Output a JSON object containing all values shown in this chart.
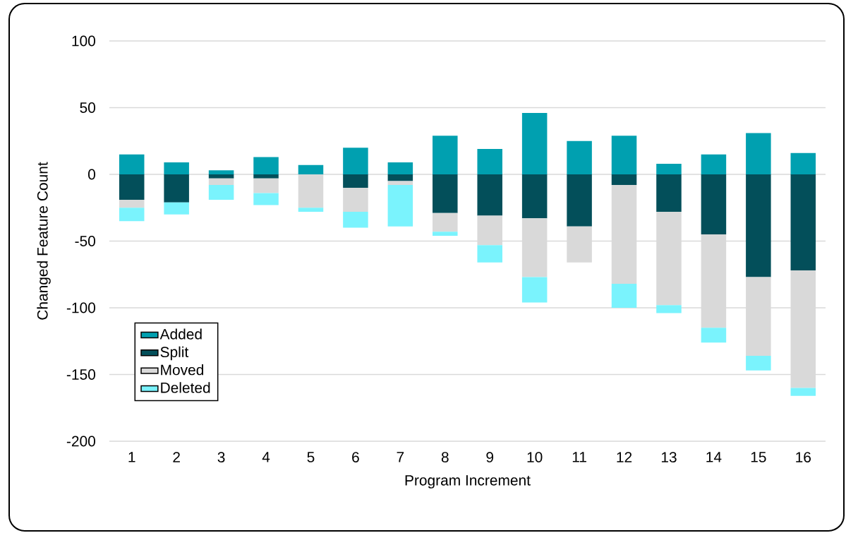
{
  "chart_data": {
    "type": "bar",
    "stacked": true,
    "xlabel": "Program Increment",
    "ylabel": "Changed Feature Count",
    "categories": [
      "1",
      "2",
      "3",
      "4",
      "5",
      "6",
      "7",
      "8",
      "9",
      "10",
      "11",
      "12",
      "13",
      "14",
      "15",
      "16"
    ],
    "series": [
      {
        "name": "Added",
        "color": "#00a0b0",
        "values": [
          15,
          9,
          3,
          13,
          7,
          20,
          9,
          29,
          19,
          46,
          25,
          29,
          8,
          15,
          31,
          16
        ]
      },
      {
        "name": "Split",
        "color": "#034f5a",
        "values": [
          -19,
          -21,
          -3,
          -3,
          0,
          -10,
          -5,
          -29,
          -31,
          -33,
          -39,
          -8,
          -28,
          -45,
          -77,
          -72
        ]
      },
      {
        "name": "Moved",
        "color": "#d9d9d9",
        "values": [
          -6,
          0,
          -5,
          -11,
          -25,
          -18,
          -3,
          -14,
          -22,
          -44,
          -27,
          -74,
          -70,
          -70,
          -59,
          -88
        ]
      },
      {
        "name": "Deleted",
        "color": "#7af3fd",
        "values": [
          -10,
          -9,
          -11,
          -9,
          -3,
          -12,
          -31,
          -3,
          -13,
          -19,
          0,
          -18,
          -6,
          -11,
          -11,
          -6
        ]
      }
    ],
    "ylim": [
      -200,
      100
    ],
    "yticks": [
      -200,
      -150,
      -100,
      -50,
      0,
      50,
      100
    ],
    "grid": "y",
    "legend": "bottom left"
  }
}
